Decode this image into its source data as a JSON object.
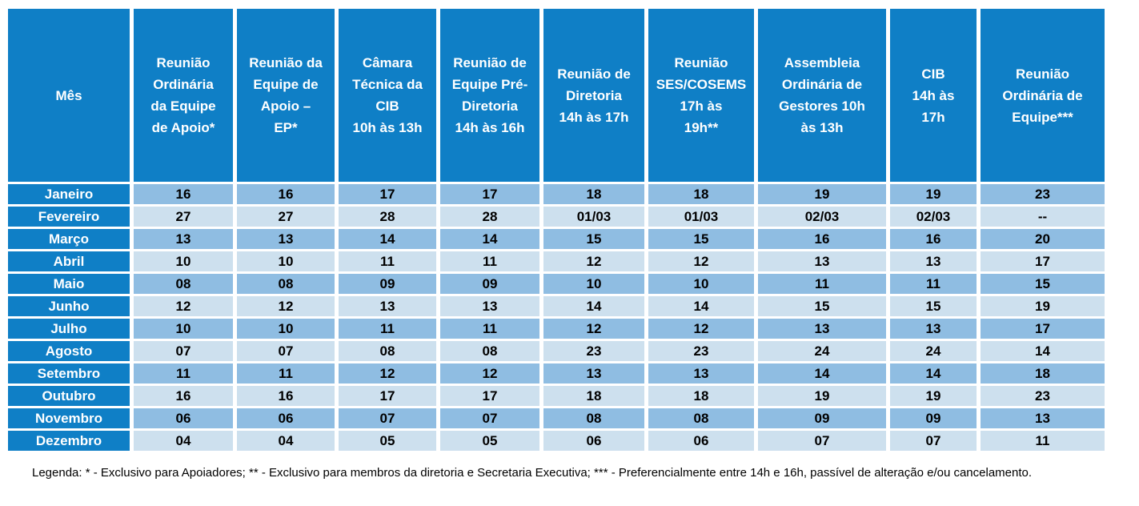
{
  "headers": [
    "Mês",
    "Reunião\nOrdinária\nda  Equipe\nde Apoio*",
    "Reunião da\nEquipe de\nApoio –\nEP*",
    "Câmara\nTécnica da\nCIB\n10h às 13h",
    "Reunião de\nEquipe Pré-\nDiretoria\n14h às 16h",
    "Reunião de\nDiretoria\n14h às 17h",
    "Reunião\nSES/COSEMS\n17h às\n19h**",
    "Assembleia\nOrdinária de\nGestores 10h\nàs 13h",
    "CIB\n14h às\n17h",
    "Reunião\nOrdinária de\nEquipe***"
  ],
  "rows": [
    {
      "month": "Janeiro",
      "values": [
        "16",
        "16",
        "17",
        "17",
        "18",
        "18",
        "19",
        "19",
        "23"
      ]
    },
    {
      "month": "Fevereiro",
      "values": [
        "27",
        "27",
        "28",
        "28",
        "01/03",
        "01/03",
        "02/03",
        "02/03",
        "--"
      ]
    },
    {
      "month": "Março",
      "values": [
        "13",
        "13",
        "14",
        "14",
        "15",
        "15",
        "16",
        "16",
        "20"
      ]
    },
    {
      "month": "Abril",
      "values": [
        "10",
        "10",
        "11",
        "11",
        "12",
        "12",
        "13",
        "13",
        "17"
      ]
    },
    {
      "month": "Maio",
      "values": [
        "08",
        "08",
        "09",
        "09",
        "10",
        "10",
        "11",
        "11",
        "15"
      ]
    },
    {
      "month": "Junho",
      "values": [
        "12",
        "12",
        "13",
        "13",
        "14",
        "14",
        "15",
        "15",
        "19"
      ]
    },
    {
      "month": "Julho",
      "values": [
        "10",
        "10",
        "11",
        "11",
        "12",
        "12",
        "13",
        "13",
        "17"
      ]
    },
    {
      "month": "Agosto",
      "values": [
        "07",
        "07",
        "08",
        "08",
        "23",
        "23",
        "24",
        "24",
        "14"
      ]
    },
    {
      "month": "Setembro",
      "values": [
        "11",
        "11",
        "12",
        "12",
        "13",
        "13",
        "14",
        "14",
        "18"
      ]
    },
    {
      "month": "Outubro",
      "values": [
        "16",
        "16",
        "17",
        "17",
        "18",
        "18",
        "19",
        "19",
        "23"
      ]
    },
    {
      "month": "Novembro",
      "values": [
        "06",
        "06",
        "07",
        "07",
        "08",
        "08",
        "09",
        "09",
        "13"
      ]
    },
    {
      "month": "Dezembro",
      "values": [
        "04",
        "04",
        "05",
        "05",
        "06",
        "06",
        "07",
        "07",
        "11"
      ]
    }
  ],
  "legend": "Legenda: * - Exclusivo para Apoiadores; ** - Exclusivo para membros da diretoria e Secretaria Executiva; *** - Preferencialmente entre 14h e 16h, passível de alteração e/ou cancelamento.",
  "colors": {
    "header_bg": "#0f7fc6",
    "row_dark": "#8fbde2",
    "row_light": "#cde0ee"
  }
}
